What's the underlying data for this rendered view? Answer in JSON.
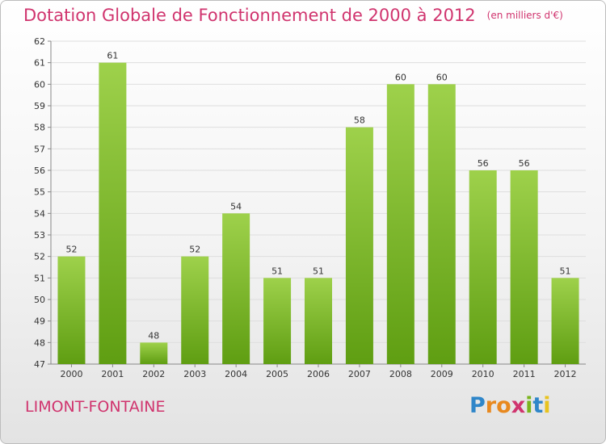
{
  "header": {
    "title": "Dotation Globale de Fonctionnement de 2000 à 2012",
    "unit": "(en milliers d'€)"
  },
  "commune": "LIMONT-FONTAINE",
  "logo": {
    "text": "Proxiti",
    "letter_colors": [
      "#2f86c9",
      "#e8891f",
      "#e8891f",
      "#d0346e",
      "#7ab51d",
      "#2f86c9",
      "#e8c31f"
    ]
  },
  "colors": {
    "bar_top": "#9ed14b",
    "bar_bottom": "#5f9e12",
    "title": "#d0346e",
    "grid": "#dedede"
  },
  "chart_data": {
    "type": "bar",
    "categories": [
      "2000",
      "2001",
      "2002",
      "2003",
      "2004",
      "2005",
      "2006",
      "2007",
      "2008",
      "2009",
      "2010",
      "2011",
      "2012"
    ],
    "values": [
      52,
      61,
      48,
      52,
      54,
      51,
      51,
      58,
      60,
      60,
      56,
      56,
      51
    ],
    "ylim": [
      47,
      62
    ],
    "yticks": [
      47,
      48,
      49,
      50,
      51,
      52,
      53,
      54,
      55,
      56,
      57,
      58,
      59,
      60,
      61,
      62
    ],
    "grid": true,
    "data_labels": true
  }
}
